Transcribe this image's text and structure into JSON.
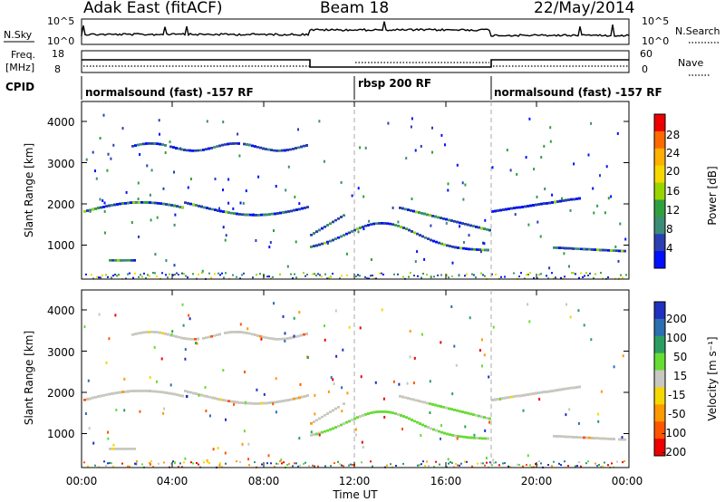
{
  "header": {
    "station": "Adak East (fitACF)",
    "beam": "Beam 18",
    "date": "22/May/2014"
  },
  "top_panels": {
    "nsky_label": "N.Sky",
    "nsky_ticks": [
      "10^5",
      "10^0"
    ],
    "nsearch_label": "N.Search",
    "nsearch_ticks": [
      "10^5",
      "10^0"
    ],
    "freq_label_1": "Freq.",
    "freq_label_2": "[MHz]",
    "freq_ticks": [
      "18",
      "8"
    ],
    "nave_label": "Nave",
    "nave_ticks": [
      "60",
      "0"
    ],
    "cpid_label": "CPID"
  },
  "cpid": [
    {
      "start": "00:00",
      "end": "12:00",
      "name": "normalsound (fast) -157 RF"
    },
    {
      "start": "12:00",
      "end": "18:00",
      "name": "rbsp 200 RF"
    },
    {
      "start": "18:00",
      "end": "24:00",
      "name": "normalsound (fast) -157 RF"
    }
  ],
  "chart_data": [
    {
      "type": "heatmap",
      "ylabel": "Slant Range [km]",
      "ylim": [
        180,
        4600
      ],
      "y_ticks": [
        "4000",
        "3000",
        "2000",
        "1000"
      ],
      "colorbar_label": "Power [dB]",
      "colorbar_ticks": [
        "28",
        "24",
        "20",
        "16",
        "12",
        "8",
        "4"
      ],
      "colorscale": [
        "#ee0000",
        "#ff6a00",
        "#ffb000",
        "#f5d800",
        "#9ad400",
        "#2fa040",
        "#3c8c78",
        "#2a3fb0",
        "#0010ff"
      ]
    },
    {
      "type": "heatmap",
      "ylabel": "Slant Range [km]",
      "ylim": [
        180,
        4600
      ],
      "y_ticks": [
        "4000",
        "3000",
        "2000",
        "1000"
      ],
      "colorbar_label": "Velocity [m s⁻¹]",
      "colorbar_ticks": [
        "200",
        "100",
        "50",
        "15",
        "-15",
        "-50",
        "-100",
        "-200"
      ],
      "colorscale": [
        "#2030c0",
        "#2a6fb0",
        "#2a9e60",
        "#66dd33",
        "#c8c8c0",
        "#f5d800",
        "#ff9900",
        "#ff5500",
        "#ee0000"
      ]
    }
  ],
  "xaxis": {
    "label": "Time UT",
    "ticks": [
      "00:00",
      "04:00",
      "08:00",
      "12:00",
      "16:00",
      "20:00",
      "00:00"
    ]
  }
}
